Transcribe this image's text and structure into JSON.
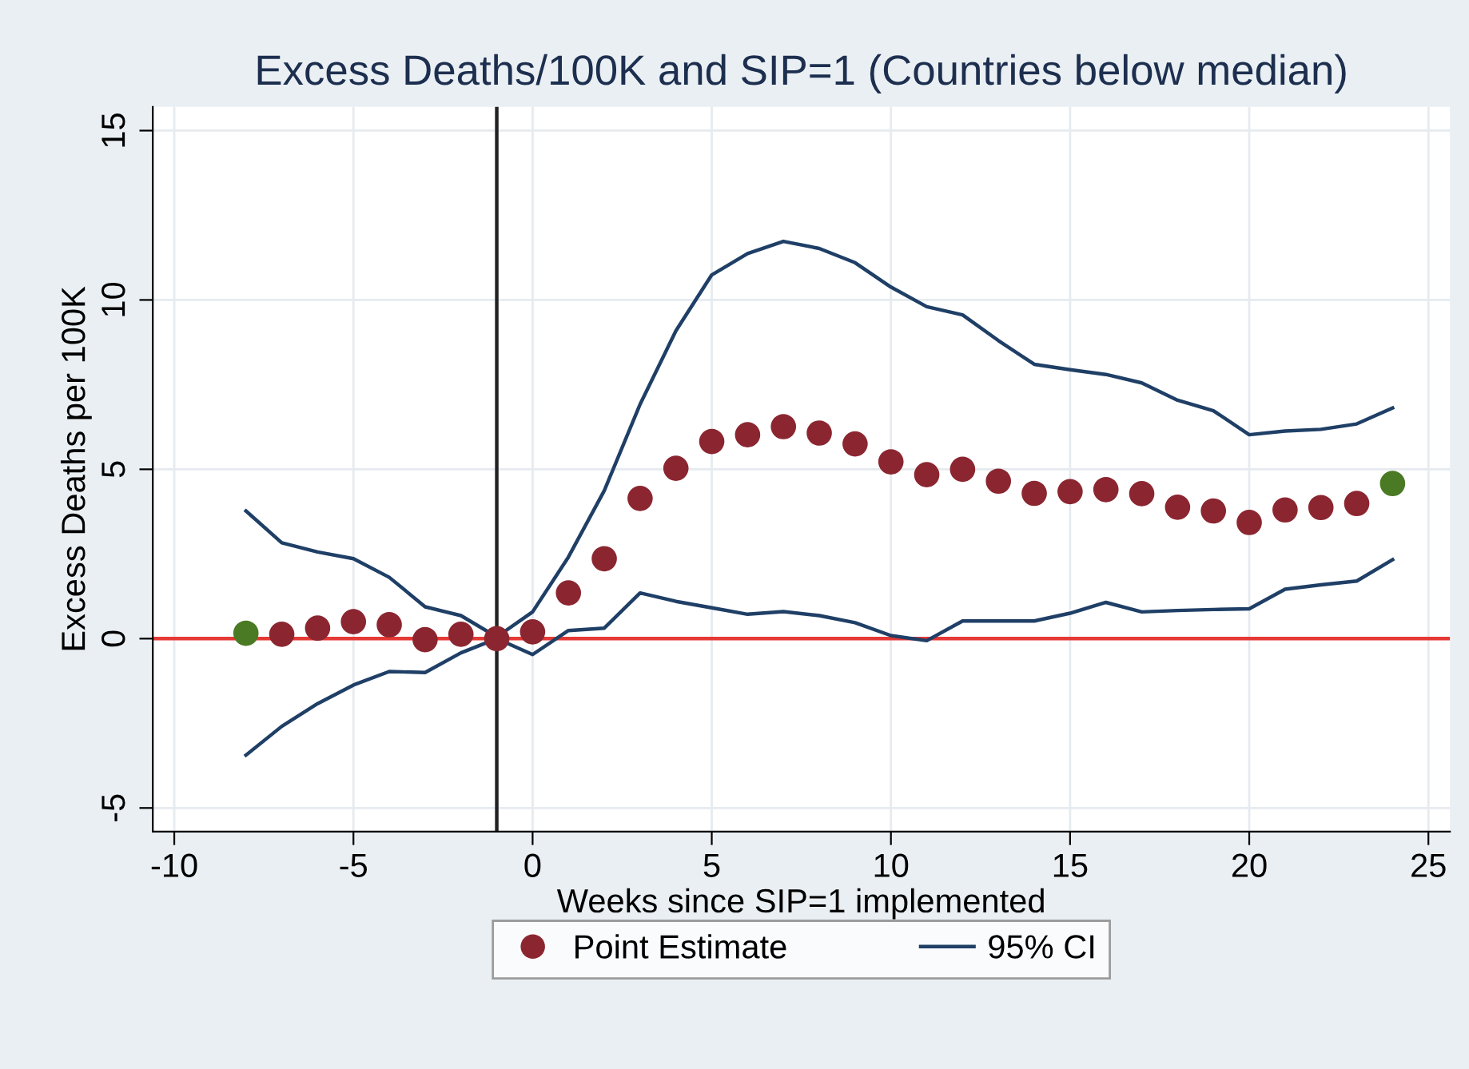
{
  "chart_data": {
    "type": "scatter",
    "title": "Excess Deaths/100K and SIP=1 (Countries below median)",
    "xlabel": "Weeks since SIP=1 implemented",
    "ylabel": "Excess Deaths per 100K",
    "xlim": [
      -10.6,
      25.6
    ],
    "xticks": [
      -10,
      -5,
      0,
      5,
      10,
      15,
      20,
      25
    ],
    "ylim": [
      -5.7,
      15.7
    ],
    "yticks": [
      -5,
      0,
      5,
      10,
      15
    ],
    "grid": true,
    "legend": "bottom",
    "ref_lines": [
      {
        "axis": "x",
        "value": -1,
        "color": "#222222"
      },
      {
        "axis": "y",
        "value": 0,
        "color": "#e53935"
      }
    ],
    "series": [
      {
        "name": "Point Estimate",
        "marker": "circle",
        "color": "#8b2630",
        "colors": [
          "#4a7a23",
          "#8b2630",
          "#8b2630",
          "#8b2630",
          "#8b2630",
          "#8b2630",
          "#8b2630",
          "#8b2630",
          "#8b2630",
          "#8b2630",
          "#8b2630",
          "#8b2630",
          "#8b2630",
          "#8b2630",
          "#8b2630",
          "#8b2630",
          "#8b2630",
          "#8b2630",
          "#8b2630",
          "#8b2630",
          "#8b2630",
          "#8b2630",
          "#8b2630",
          "#8b2630",
          "#8b2630",
          "#8b2630",
          "#8b2630",
          "#8b2630",
          "#8b2630",
          "#8b2630",
          "#8b2630",
          "#8b2630",
          "#4a7a23"
        ],
        "x": [
          -8,
          -7,
          -6,
          -5,
          -4,
          -3,
          -2,
          -1,
          0,
          1,
          2,
          3,
          4,
          5,
          6,
          7,
          8,
          9,
          10,
          11,
          12,
          13,
          14,
          15,
          16,
          17,
          18,
          19,
          20,
          21,
          22,
          23,
          24
        ],
        "values": [
          0.16,
          0.13,
          0.31,
          0.5,
          0.41,
          -0.03,
          0.13,
          0,
          0.2,
          1.35,
          2.36,
          4.14,
          5.03,
          5.82,
          6.02,
          6.26,
          6.07,
          5.75,
          5.22,
          4.84,
          5.0,
          4.65,
          4.29,
          4.34,
          4.4,
          4.28,
          3.88,
          3.77,
          3.43,
          3.8,
          3.87,
          3.99,
          4.58
        ]
      },
      {
        "name": "95% CI",
        "type": "line",
        "line_style": "solid",
        "color": "#1f3f66",
        "x": [
          -8,
          -7,
          -6,
          -5,
          -4,
          -3,
          -2,
          -1,
          0,
          1,
          2,
          3,
          4,
          5,
          6,
          7,
          8,
          9,
          10,
          11,
          12,
          13,
          14,
          15,
          16,
          17,
          18,
          19,
          20,
          21,
          22,
          23,
          24
        ],
        "values": [
          3.77,
          2.83,
          2.56,
          2.36,
          1.81,
          0.94,
          0.68,
          0.05,
          0.79,
          2.41,
          4.37,
          6.92,
          9.09,
          10.74,
          11.37,
          11.73,
          11.52,
          11.1,
          10.38,
          9.8,
          9.56,
          8.8,
          8.1,
          7.94,
          7.8,
          7.55,
          7.04,
          6.73,
          6.02,
          6.13,
          6.18,
          6.34,
          6.81
        ]
      },
      {
        "type": "line",
        "line_style": "solid",
        "color": "#1f3f66",
        "x": [
          -8,
          -7,
          -6,
          -5,
          -4,
          -3,
          -2,
          -1,
          0,
          1,
          2,
          3,
          4,
          5,
          6,
          7,
          8,
          9,
          10,
          11,
          12,
          13,
          14,
          15,
          16,
          17,
          18,
          19,
          20,
          21,
          22,
          23,
          24
        ],
        "values": [
          -3.44,
          -2.59,
          -1.92,
          -1.37,
          -0.97,
          -1.0,
          -0.42,
          0,
          -0.47,
          0.24,
          0.31,
          1.35,
          1.1,
          0.91,
          0.72,
          0.8,
          0.68,
          0.47,
          0.09,
          -0.06,
          0.52,
          0.52,
          0.52,
          0.75,
          1.07,
          0.79,
          0.83,
          0.86,
          0.88,
          1.46,
          1.59,
          1.7,
          2.33
        ]
      }
    ]
  }
}
